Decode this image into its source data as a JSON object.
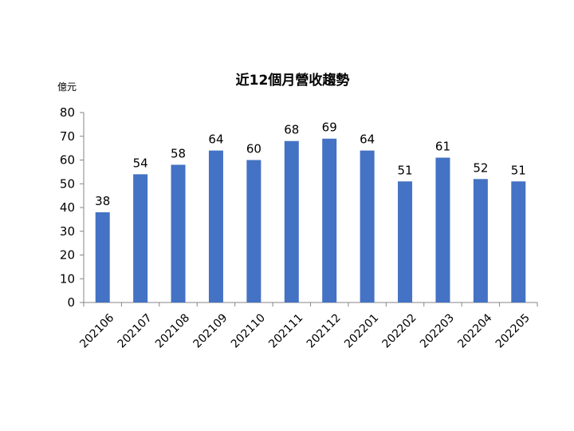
{
  "chart_data": {
    "type": "bar",
    "title": "近12個月營收趨勢",
    "ylabel": "億元",
    "xlabel": "",
    "categories": [
      "202106",
      "202107",
      "202108",
      "202109",
      "202110",
      "202111",
      "202112",
      "202201",
      "202202",
      "202203",
      "202204",
      "202205"
    ],
    "values": [
      38,
      54,
      58,
      64,
      60,
      68,
      69,
      64,
      51,
      61,
      52,
      51
    ],
    "data_labels": [
      "38",
      "54",
      "58",
      "64",
      "60",
      "68",
      "69",
      "64",
      "51",
      "61",
      "52",
      "51"
    ],
    "ylim": [
      0,
      80
    ],
    "y_ticks": [
      "0",
      "10",
      "20",
      "30",
      "40",
      "50",
      "60",
      "70",
      "80"
    ],
    "grid": false,
    "legend": "none",
    "bar_color": "#4472C4"
  }
}
